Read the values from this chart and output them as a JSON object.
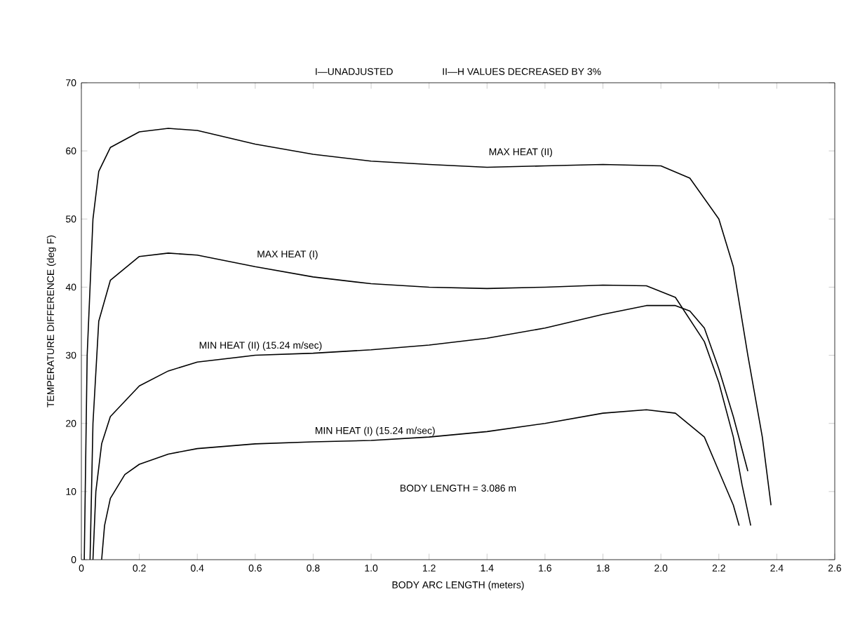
{
  "chart_data": {
    "type": "line",
    "title": "I—UNADJUSTED",
    "subtitle": "II—H VALUES DECREASED BY 3%",
    "xlabel": "BODY ARC LENGTH (meters)",
    "ylabel": "TEMPERATURE DIFFERENCE (deg F)",
    "xlim": [
      0,
      2.6
    ],
    "ylim": [
      0,
      70
    ],
    "xticks": [
      0,
      0.2,
      0.4,
      0.6,
      0.8,
      {
        "value": 1,
        "label": "1.0"
      },
      1.2,
      1.4,
      1.6,
      1.8,
      {
        "value": 2,
        "label": "2.0"
      },
      2.2,
      2.4,
      2.6
    ],
    "yticks": [
      0,
      10,
      20,
      30,
      40,
      50,
      60,
      70
    ],
    "grid": false,
    "legend": false,
    "marker": "none",
    "line_style": "solid",
    "annotations": [
      "BODY LENGTH = 3.086 m"
    ],
    "series": [
      {
        "name": "MAX HEAT (II)",
        "color": "#000000",
        "x": [
          0.01,
          0.02,
          0.04,
          0.06,
          0.1,
          0.2,
          0.3,
          0.4,
          0.6,
          0.8,
          1.0,
          1.2,
          1.4,
          1.6,
          1.8,
          2.0,
          2.1,
          2.2,
          2.25,
          2.3,
          2.35,
          2.38
        ],
        "values": [
          0,
          30,
          50,
          57,
          60.5,
          62.8,
          63.3,
          63,
          61,
          59.5,
          58.5,
          58,
          57.6,
          57.8,
          58,
          57.8,
          56,
          50,
          43,
          30,
          18,
          8
        ]
      },
      {
        "name": "MAX HEAT (I)",
        "color": "#000000",
        "x": [
          0.03,
          0.04,
          0.06,
          0.1,
          0.2,
          0.3,
          0.4,
          0.6,
          0.8,
          1.0,
          1.2,
          1.4,
          1.6,
          1.8,
          1.95,
          2.05,
          2.15,
          2.2,
          2.25,
          2.28,
          2.31
        ],
        "values": [
          0,
          20,
          35,
          41,
          44.5,
          45,
          44.7,
          43,
          41.5,
          40.5,
          40,
          39.8,
          40,
          40.3,
          40.2,
          38.5,
          32,
          26,
          18,
          11,
          5
        ]
      },
      {
        "name": "MIN HEAT (II) (15.24 m/sec)",
        "color": "#000000",
        "x": [
          0.04,
          0.05,
          0.07,
          0.1,
          0.2,
          0.3,
          0.4,
          0.6,
          0.8,
          1.0,
          1.2,
          1.4,
          1.6,
          1.8,
          1.95,
          2.05,
          2.1,
          2.15,
          2.2,
          2.25,
          2.3
        ],
        "values": [
          0,
          10,
          17,
          21,
          25.5,
          27.7,
          29,
          30,
          30.3,
          30.8,
          31.5,
          32.5,
          34,
          36,
          37.3,
          37.3,
          36.5,
          34,
          28,
          21,
          13
        ]
      },
      {
        "name": "MIN HEAT (I) (15.24 m/sec)",
        "color": "#000000",
        "x": [
          0.07,
          0.08,
          0.1,
          0.15,
          0.2,
          0.3,
          0.4,
          0.6,
          0.8,
          1.0,
          1.2,
          1.4,
          1.6,
          1.8,
          1.95,
          2.05,
          2.15,
          2.2,
          2.25,
          2.27
        ],
        "values": [
          0,
          5,
          9,
          12.5,
          14,
          15.5,
          16.3,
          17,
          17.3,
          17.5,
          18,
          18.8,
          20,
          21.5,
          22,
          21.5,
          18,
          13,
          8,
          5
        ]
      }
    ]
  }
}
